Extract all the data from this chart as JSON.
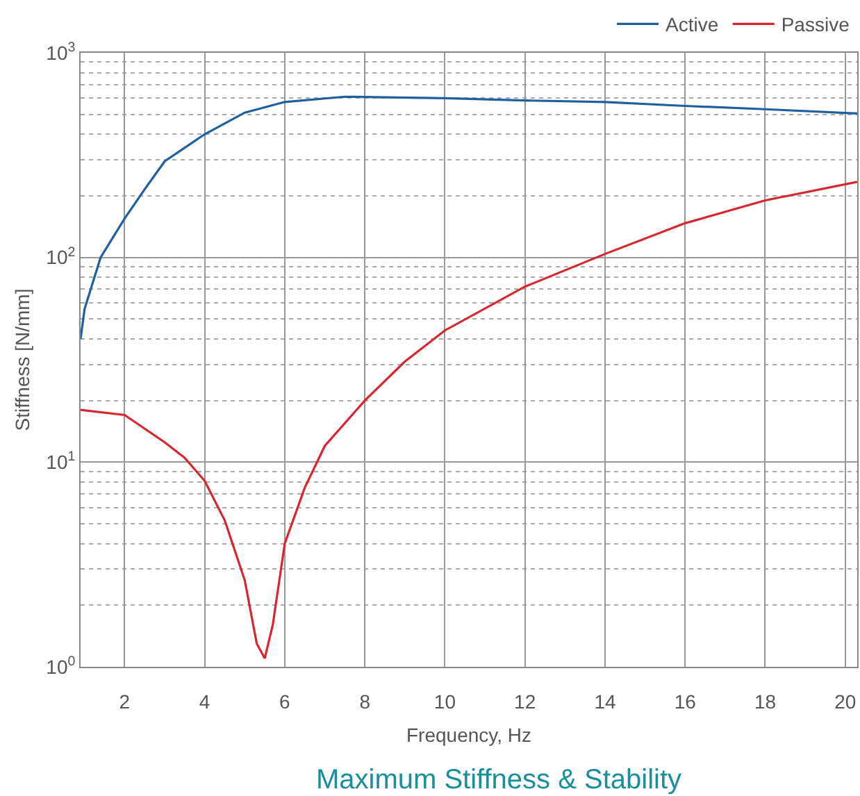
{
  "chart_data": {
    "type": "line",
    "title": "Maximum Stiffness & Stability",
    "xlabel": "Frequency, Hz",
    "ylabel": "Stiffness [N/mm]",
    "log": "y",
    "grid": true,
    "legend": "top right",
    "marker": "none",
    "line_style": "solid",
    "xlim": [
      0.9,
      20.3
    ],
    "xticks": [
      2,
      4,
      6,
      8,
      10,
      12,
      14,
      16,
      18,
      20
    ],
    "ylim": [
      1,
      1000
    ],
    "yticks": [
      {
        "value": 1,
        "label": "10$^{0}$"
      },
      {
        "value": 10,
        "label": "10$^{1}$"
      },
      {
        "value": 100,
        "label": "10$^{2}$"
      },
      {
        "value": 1000,
        "label": "10$^{3}$"
      }
    ],
    "series": [
      {
        "name": "Active",
        "color": "#1f5fa0",
        "x": [
          0.9,
          1.0,
          1.4,
          2.0,
          2.5,
          3.0,
          4.0,
          5.0,
          6.0,
          7.5,
          10,
          12,
          14,
          16,
          18,
          20.3
        ],
        "values": [
          40,
          56,
          100,
          155,
          215,
          295,
          400,
          510,
          575,
          610,
          600,
          585,
          575,
          550,
          530,
          505
        ]
      },
      {
        "name": "Passive",
        "color": "#d7262f",
        "x": [
          0.9,
          2.0,
          3.0,
          3.5,
          4.0,
          4.5,
          5.0,
          5.3,
          5.5,
          5.7,
          6.0,
          6.5,
          7.0,
          8.0,
          9.0,
          10,
          12,
          14,
          16,
          18,
          20.3
        ],
        "values": [
          18,
          17,
          12.5,
          10.5,
          8.1,
          5.2,
          2.65,
          1.3,
          1.1,
          1.6,
          4.0,
          7.5,
          12,
          20,
          31,
          44,
          72,
          104,
          147,
          190,
          234
        ]
      }
    ]
  }
}
